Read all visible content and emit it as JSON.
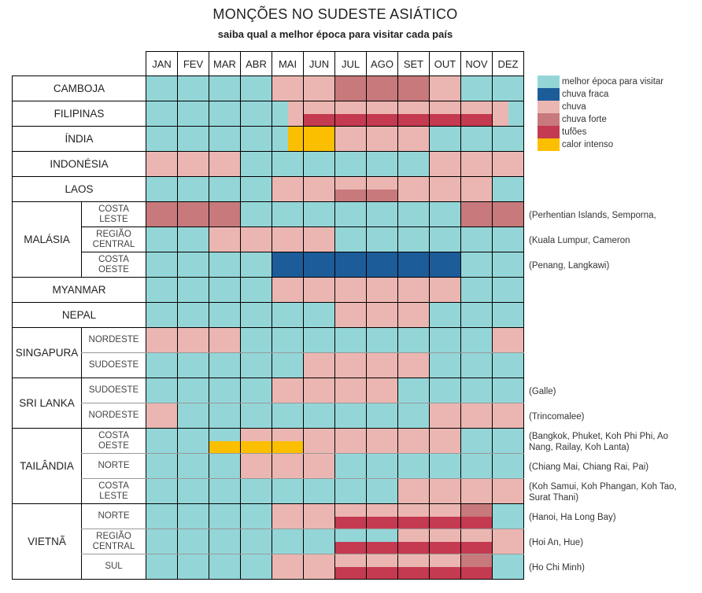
{
  "title": "MONÇÕES NO SUDESTE ASIÁTICO",
  "subtitle": "saiba qual a melhor época para visitar cada país",
  "chart_data": {
    "type": "heatmap",
    "months": [
      "JAN",
      "FEV",
      "MAR",
      "ABR",
      "MAI",
      "JUN",
      "JUL",
      "AGO",
      "SET",
      "OUT",
      "NOV",
      "DEZ"
    ],
    "legend": [
      {
        "key": "best",
        "label": "melhor época para visitar",
        "color": "#94d6d8"
      },
      {
        "key": "light",
        "label": "chuva fraca",
        "color": "#1c5c99"
      },
      {
        "key": "rain",
        "label": "chuva",
        "color": "#ebb6b1"
      },
      {
        "key": "heavy",
        "label": "chuva forte",
        "color": "#c7797b"
      },
      {
        "key": "typhoon",
        "label": "tufões",
        "color": "#c43a50"
      },
      {
        "key": "heat",
        "label": "calor intenso",
        "color": "#fbbf00"
      }
    ],
    "cell_notation": "single key; 'top/bottom' for stacked halves; 'left|right' for side-by-side halves",
    "rows": [
      {
        "country": "CAMBOJA",
        "cells": [
          "best",
          "best",
          "best",
          "best",
          "rain",
          "rain",
          "heavy",
          "heavy",
          "heavy",
          "rain",
          "best",
          "best"
        ]
      },
      {
        "country": "FILIPINAS",
        "cells": [
          "best",
          "best",
          "best",
          "best",
          "best|rain",
          "rain/typhoon",
          "rain/typhoon",
          "rain/typhoon",
          "rain/typhoon",
          "rain/typhoon",
          "rain/typhoon",
          "rain|best"
        ]
      },
      {
        "country": "ÍNDIA",
        "cells": [
          "best",
          "best",
          "best",
          "best",
          "best|heat",
          "heat",
          "rain",
          "rain",
          "rain",
          "best",
          "best",
          "best"
        ]
      },
      {
        "country": "INDONÉSIA",
        "cells": [
          "rain",
          "rain",
          "rain",
          "best",
          "best",
          "best",
          "best",
          "best",
          "best",
          "rain",
          "rain",
          "rain"
        ]
      },
      {
        "country": "LAOS",
        "cells": [
          "best",
          "best",
          "best",
          "best",
          "rain",
          "rain",
          "rain/heavy",
          "rain/heavy",
          "rain",
          "rain",
          "rain",
          "best"
        ]
      },
      {
        "country": "MALÁSIA",
        "subrows": [
          {
            "label": "COSTA LESTE",
            "note": "(Perhentian Islands, Semporna,",
            "cells": [
              "heavy",
              "heavy",
              "heavy",
              "best",
              "best",
              "best",
              "best",
              "best",
              "best",
              "best",
              "heavy",
              "heavy"
            ]
          },
          {
            "label": "REGIÃO CENTRAL",
            "note": "(Kuala Lumpur, Cameron",
            "cells": [
              "best",
              "best",
              "rain",
              "rain",
              "rain",
              "rain",
              "best",
              "best",
              "best",
              "best",
              "best",
              "best"
            ]
          },
          {
            "label": "COSTA OESTE",
            "note": "(Penang, Langkawi)",
            "cells": [
              "best",
              "best",
              "best",
              "best",
              "light",
              "light",
              "light",
              "light",
              "light",
              "light",
              "best",
              "best"
            ]
          }
        ]
      },
      {
        "country": "MYANMAR",
        "cells": [
          "best",
          "best",
          "best",
          "best",
          "rain",
          "rain",
          "rain",
          "rain",
          "rain",
          "rain",
          "best",
          "best"
        ]
      },
      {
        "country": "NEPAL",
        "cells": [
          "best",
          "best",
          "best",
          "best",
          "best",
          "best",
          "rain",
          "rain",
          "rain",
          "best",
          "best",
          "best"
        ]
      },
      {
        "country": "SINGAPURA",
        "subrows": [
          {
            "label": "NORDESTE",
            "cells": [
              "rain",
              "rain",
              "rain",
              "best",
              "best",
              "best",
              "best",
              "best",
              "best",
              "best",
              "best",
              "rain"
            ]
          },
          {
            "label": "SUDOESTE",
            "cells": [
              "best",
              "best",
              "best",
              "best",
              "best",
              "rain",
              "rain",
              "rain",
              "rain",
              "best",
              "best",
              "best"
            ]
          }
        ]
      },
      {
        "country": "SRI LANKA",
        "subrows": [
          {
            "label": "SUDOESTE",
            "note": "(Galle)",
            "cells": [
              "best",
              "best",
              "best",
              "best",
              "rain",
              "rain",
              "rain",
              "rain",
              "best",
              "best",
              "best",
              "best"
            ]
          },
          {
            "label": "NORDESTE",
            "note": "(Trincomalee)",
            "cells": [
              "rain",
              "best",
              "best",
              "best",
              "best",
              "best",
              "best",
              "best",
              "best",
              "rain",
              "rain",
              "rain"
            ]
          }
        ]
      },
      {
        "country": "TAILÂNDIA",
        "subrows": [
          {
            "label": "COSTA OESTE",
            "note": "(Bangkok, Phuket, Koh Phi Phi, Ao Nang, Railay, Koh Lanta)",
            "cells": [
              "best",
              "best",
              "best/heat",
              "rain/heat",
              "rain/heat",
              "rain",
              "rain",
              "rain",
              "rain",
              "rain",
              "best",
              "best"
            ]
          },
          {
            "label": "NORTE",
            "note": "(Chiang Mai, Chiang Rai, Pai)",
            "cells": [
              "best",
              "best",
              "best",
              "rain",
              "rain",
              "rain",
              "best",
              "best",
              "best",
              "best",
              "best",
              "best"
            ]
          },
          {
            "label": "COSTA LESTE",
            "note": "(Koh Samui, Koh Phangan, Koh Tao, Surat Thani)",
            "cells": [
              "best",
              "best",
              "best",
              "best",
              "best",
              "best",
              "best",
              "best",
              "rain",
              "rain",
              "rain",
              "rain"
            ]
          }
        ]
      },
      {
        "country": "VIETNÃ",
        "subrows": [
          {
            "label": "NORTE",
            "note": "(Hanoi, Ha Long Bay)",
            "cells": [
              "best",
              "best",
              "best",
              "best",
              "rain",
              "rain",
              "rain/typhoon",
              "rain/typhoon",
              "rain/typhoon",
              "rain/typhoon",
              "heavy/typhoon",
              "best"
            ]
          },
          {
            "label": "REGIÃO CENTRAL",
            "note": "(Hoi An, Hue)",
            "cells": [
              "best",
              "best",
              "best",
              "best",
              "best",
              "best",
              "best/typhoon",
              "best/typhoon",
              "rain/typhoon",
              "rain/typhoon",
              "rain/typhoon",
              "rain"
            ]
          },
          {
            "label": "SUL",
            "note": "(Ho Chi Minh)",
            "cells": [
              "best",
              "best",
              "best",
              "best",
              "rain",
              "rain",
              "rain/typhoon",
              "rain/typhoon",
              "rain/typhoon",
              "rain/typhoon",
              "heavy/typhoon",
              "best"
            ]
          }
        ]
      }
    ]
  }
}
